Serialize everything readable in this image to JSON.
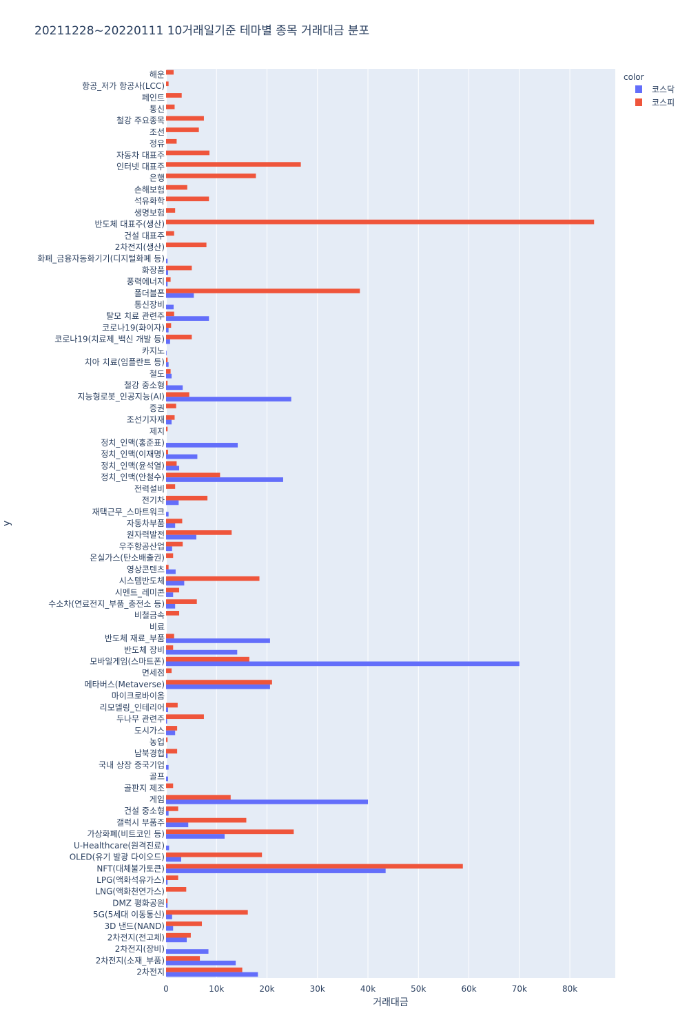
{
  "chart_data": {
    "type": "bar",
    "orientation": "horizontal",
    "barmode": "group",
    "title": "20211228~20220111 10거래일기준 테마별 종목 거래대금 분포",
    "xlabel": "거래대금",
    "ylabel": "y",
    "xlim": [
      0,
      89000
    ],
    "xticks": [
      0,
      10000,
      20000,
      30000,
      40000,
      50000,
      60000,
      70000,
      80000
    ],
    "xtick_labels": [
      "0",
      "10k",
      "20k",
      "30k",
      "40k",
      "50k",
      "60k",
      "70k",
      "80k"
    ],
    "grid": true,
    "legend": {
      "title": "color",
      "placement": "top-right"
    },
    "categories": [
      "해운",
      "항공_저가 항공사(LCC)",
      "페인트",
      "통신",
      "철강 주요종목",
      "조선",
      "정유",
      "자동차 대표주",
      "인터넷 대표주",
      "은행",
      "손해보험",
      "석유화학",
      "생명보험",
      "반도체 대표주(생산)",
      "건설 대표주",
      "2차전지(생산)",
      "화폐_금융자동화기기(디지털화폐 등)",
      "화장품",
      "풍력에너지",
      "폴더블폰",
      "통신장비",
      "탈모 치료 관련주",
      "코로나19(화이자)",
      "코로나19(치료제_백신 개발 등)",
      "카지노",
      "치아 치료(임플란트 등)",
      "철도",
      "철강 중소형",
      "지능형로봇_인공지능(AI)",
      "증권",
      "조선기자재",
      "제지",
      "정치_인맥(홍준표)",
      "정치_인맥(이재명)",
      "정치_인맥(윤석열)",
      "정치_인맥(안철수)",
      "전력설비",
      "전기차",
      "재택근무_스마트워크",
      "자동차부품",
      "원자력발전",
      "우주항공산업",
      "온실가스(탄소배출권)",
      "영상콘텐츠",
      "시스템반도체",
      "시멘트_레미콘",
      "수소차(연료전지_부품_충전소 등)",
      "비철금속",
      "비료",
      "반도체 재료_부품",
      "반도체 장비",
      "모바일게임(스마트폰)",
      "면세점",
      "메타버스(Metaverse)",
      "마이크로바이옴",
      "리모델링_인테리어",
      "두나무 관련주",
      "도시가스",
      "농업",
      "남북경협",
      "국내 상장 중국기업",
      "골프",
      "골판지 제조",
      "게임",
      "건설 중소형",
      "갤럭시 부품주",
      "가상화폐(비트코인 등)",
      "U-Healthcare(원격진료)",
      "OLED(유기 발광 다이오드)",
      "NFT(대체불가토큰)",
      "LPG(액화석유가스)",
      "LNG(액화천연가스)",
      "DMZ 평화공원",
      "5G(5세대 이동통신)",
      "3D 낸드(NAND)",
      "2차전지(전고체)",
      "2차전지(장비)",
      "2차전지(소재_부품)",
      "2차전지"
    ],
    "series": [
      {
        "name": "코스닥",
        "color": "#636efa",
        "values": [
          0,
          0,
          0,
          0,
          0,
          0,
          0,
          0,
          0,
          0,
          0,
          0,
          0,
          0,
          0,
          0,
          300,
          400,
          300,
          5500,
          1500,
          8500,
          500,
          800,
          100,
          500,
          1100,
          3300,
          24800,
          0,
          1100,
          0,
          14200,
          6200,
          2600,
          23200,
          0,
          2500,
          500,
          1800,
          6000,
          1200,
          0,
          1900,
          3600,
          1400,
          1800,
          0,
          0,
          20600,
          14100,
          70000,
          0,
          20600,
          0,
          400,
          200,
          1800,
          0,
          300,
          500,
          400,
          0,
          40000,
          500,
          4400,
          11600,
          600,
          3000,
          43500,
          300,
          0,
          300,
          1200,
          1400,
          4100,
          8400,
          13800,
          18200
        ]
      },
      {
        "name": "코스피",
        "color": "#ef553b",
        "values": [
          1500,
          500,
          3100,
          1700,
          7500,
          6500,
          2100,
          8600,
          26700,
          17800,
          4200,
          8500,
          1800,
          84800,
          1600,
          8000,
          0,
          5100,
          900,
          38400,
          0,
          1600,
          1000,
          5100,
          0,
          300,
          900,
          300,
          4600,
          2000,
          1700,
          300,
          0,
          400,
          2100,
          10700,
          1800,
          8200,
          0,
          3200,
          13000,
          3300,
          1400,
          500,
          18500,
          2600,
          6100,
          2600,
          0,
          1600,
          1400,
          16500,
          1100,
          21000,
          0,
          2300,
          7500,
          2200,
          300,
          2200,
          0,
          0,
          1400,
          12800,
          2400,
          15900,
          25300,
          0,
          19000,
          58800,
          2400,
          4000,
          300,
          16200,
          7100,
          4900,
          0,
          6700,
          15100
        ]
      }
    ]
  }
}
